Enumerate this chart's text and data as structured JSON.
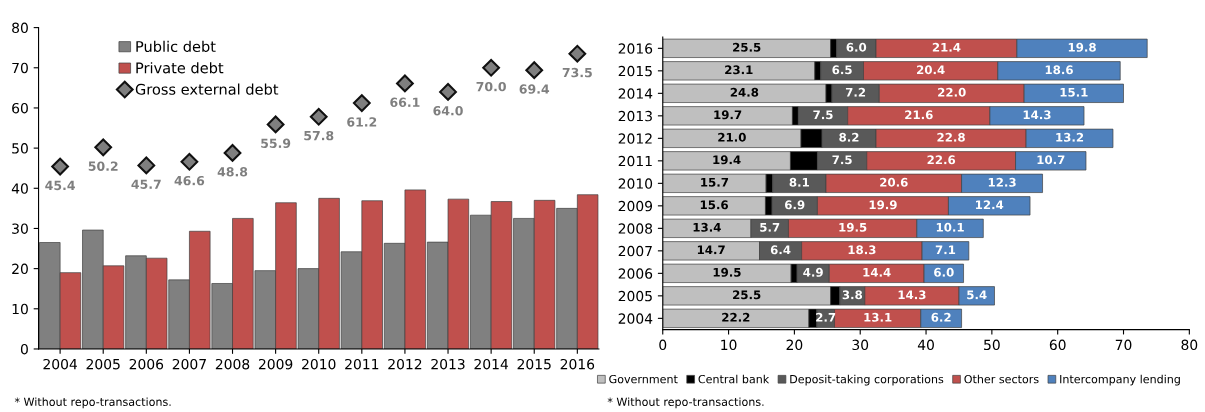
{
  "chart_data": [
    {
      "type": "bar",
      "categories": [
        "2004",
        "2005",
        "2006",
        "2007",
        "2008",
        "2009",
        "2010",
        "2011",
        "2012",
        "2013",
        "2014",
        "2015",
        "2016"
      ],
      "series": [
        {
          "name": "Public debt",
          "color": "#808080",
          "values": [
            26.5,
            29.6,
            23.2,
            17.2,
            16.3,
            19.5,
            20.0,
            24.2,
            26.3,
            26.6,
            33.3,
            32.5,
            35.0
          ]
        },
        {
          "name": "Private debt",
          "color": "#c0504d",
          "values": [
            19.0,
            20.7,
            22.6,
            29.3,
            32.5,
            36.4,
            37.5,
            36.9,
            39.6,
            37.3,
            36.7,
            37.0,
            38.4
          ]
        },
        {
          "name": "Gross external debt",
          "type": "scatter",
          "marker": "diamond",
          "color": "#7f7f7f",
          "values": [
            45.4,
            50.2,
            45.7,
            46.6,
            48.8,
            55.9,
            57.8,
            61.2,
            66.1,
            64.0,
            70.0,
            69.4,
            73.5
          ],
          "value_labels": [
            "45.4",
            "50.2",
            "45.7",
            "46.6",
            "48.8",
            "55.9",
            "57.8",
            "61.2",
            "66.1",
            "64.0",
            "70.0",
            "69.4",
            "73.5"
          ]
        }
      ],
      "ylim": [
        0,
        80
      ],
      "yticks": [
        0,
        10,
        20,
        30,
        40,
        50,
        60,
        70,
        80
      ],
      "grid": false,
      "legend": "top left",
      "annotations": [
        "* Without repo-transactions."
      ]
    },
    {
      "type": "bar",
      "orientation": "horizontal",
      "stacked": true,
      "categories": [
        "2016",
        "2015",
        "2014",
        "2013",
        "2012",
        "2011",
        "2010",
        "2009",
        "2008",
        "2007",
        "2006",
        "2005",
        "2004"
      ],
      "series": [
        {
          "name": "Government",
          "color": "#bfbfbf",
          "values": [
            25.5,
            23.1,
            24.8,
            19.7,
            21.0,
            19.4,
            15.7,
            15.6,
            13.4,
            14.7,
            19.5,
            25.5,
            22.2
          ],
          "value_labels": [
            "25.5",
            "23.1",
            "24.8",
            "19.7",
            "21.0",
            "19.4",
            "15.7",
            "15.6",
            "13.4",
            "14.7",
            "19.5",
            "25.5",
            "22.2"
          ]
        },
        {
          "name": "Central bank",
          "color": "#000000",
          "values": [
            0.9,
            0.9,
            0.9,
            0.9,
            3.2,
            4.1,
            1.0,
            1.0,
            null,
            null,
            0.9,
            1.4,
            1.2
          ]
        },
        {
          "name": "Deposit-taking corporations",
          "color": "#595959",
          "values": [
            6.0,
            6.5,
            7.2,
            7.5,
            8.2,
            7.5,
            8.1,
            6.9,
            5.7,
            6.4,
            4.9,
            3.8,
            2.7
          ],
          "value_labels": [
            "6.0",
            "6.5",
            "7.2",
            "7.5",
            "8.2",
            "7.5",
            "8.1",
            "6.9",
            "5.7",
            "6.4",
            "4.9",
            "3.8",
            "2.7"
          ]
        },
        {
          "name": "Other sectors",
          "color": "#c0504d",
          "values": [
            21.4,
            20.4,
            22.0,
            21.6,
            22.8,
            22.6,
            20.6,
            19.9,
            19.5,
            18.3,
            14.4,
            14.3,
            13.1
          ],
          "value_labels": [
            "21.4",
            "20.4",
            "22.0",
            "21.6",
            "22.8",
            "22.6",
            "20.6",
            "19.9",
            "19.5",
            "18.3",
            "14.4",
            "14.3",
            "13.1"
          ]
        },
        {
          "name": "Intercompany lending",
          "color": "#4f81bd",
          "values": [
            19.8,
            18.6,
            15.1,
            14.3,
            13.2,
            10.7,
            12.3,
            12.4,
            10.1,
            7.1,
            6.0,
            5.4,
            6.2
          ],
          "value_labels": [
            "19.8",
            "18.6",
            "15.1",
            "14.3",
            "13.2",
            "10.7",
            "12.3",
            "12.4",
            "10.1",
            "7.1",
            "6.0",
            "5.4",
            "6.2"
          ]
        }
      ],
      "xlim": [
        0,
        80
      ],
      "xticks": [
        0,
        10,
        20,
        30,
        40,
        50,
        60,
        70,
        80
      ],
      "grid": false,
      "legend": "bottom",
      "annotations": [
        "* Without repo-transactions."
      ]
    }
  ]
}
